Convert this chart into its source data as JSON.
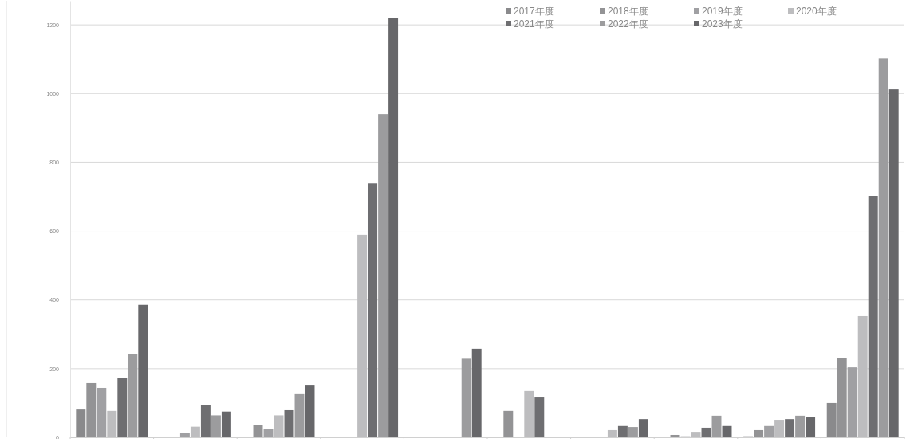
{
  "chart_data": {
    "type": "bar",
    "categories": [
      null,
      null,
      null,
      null,
      null,
      null,
      null,
      null,
      null,
      null
    ],
    "series": [
      {
        "name": "2017年度",
        "color": "#8a8a8c",
        "values": [
          81,
          2,
          2,
          null,
          null,
          null,
          null,
          null,
          3,
          100
        ]
      },
      {
        "name": "2018年度",
        "color": "#939395",
        "values": [
          158,
          2,
          35,
          null,
          null,
          77,
          null,
          7,
          21,
          230
        ]
      },
      {
        "name": "2019年度",
        "color": "#a0a0a3",
        "values": [
          144,
          13,
          25,
          null,
          null,
          null,
          null,
          3,
          33,
          204
        ]
      },
      {
        "name": "2020年度",
        "color": "#bdbdbf",
        "values": [
          77,
          31,
          64,
          590,
          null,
          135,
          21,
          16,
          51,
          353
        ]
      },
      {
        "name": "2021年度",
        "color": "#6e6e71",
        "values": [
          172,
          95,
          79,
          740,
          null,
          116,
          33,
          28,
          53,
          703
        ]
      },
      {
        "name": "2022年度",
        "color": "#9c9c9e",
        "values": [
          242,
          64,
          128,
          940,
          229,
          null,
          30,
          63,
          63,
          1102
        ]
      },
      {
        "name": "2023年度",
        "color": "#67676a",
        "values": [
          386,
          75,
          153,
          1220,
          258,
          null,
          53,
          33,
          58,
          1012
        ]
      }
    ],
    "ylim": [
      0,
      1270
    ],
    "yticks": [
      0,
      200,
      400,
      600,
      800,
      1000,
      1200
    ],
    "grid": "y",
    "legend": "top right"
  }
}
